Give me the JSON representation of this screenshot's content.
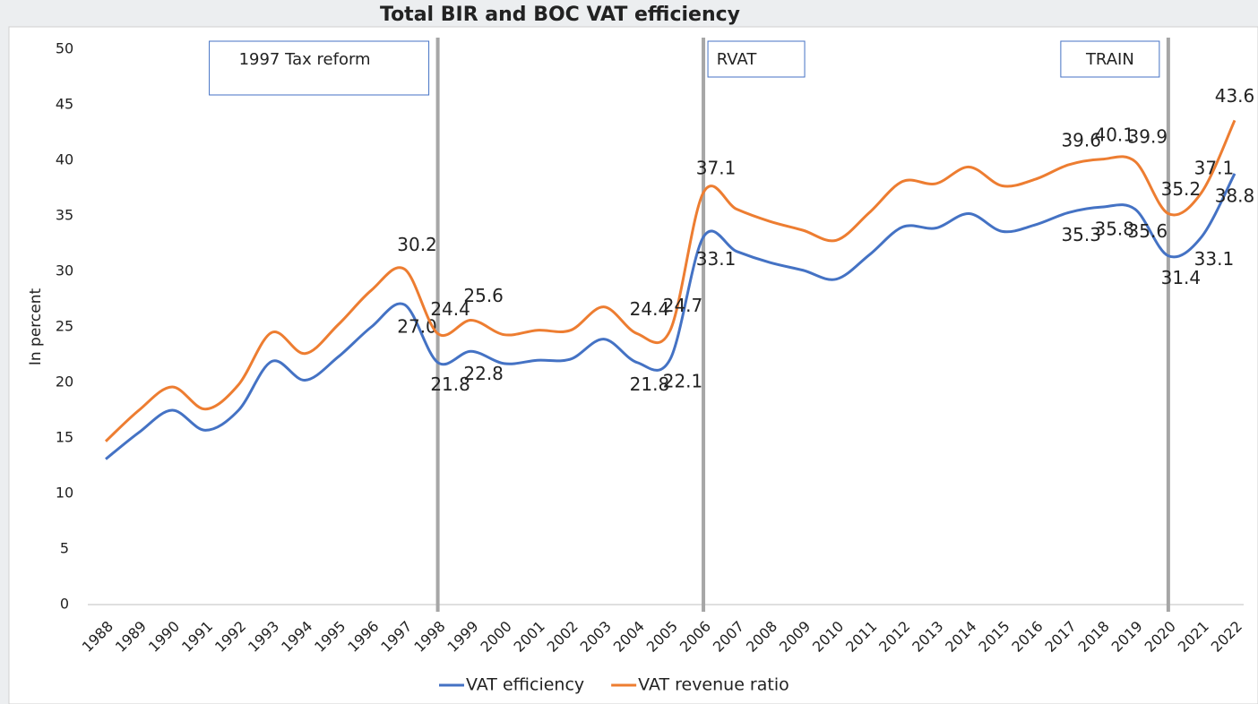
{
  "chart_data": {
    "type": "line",
    "title": "Total BIR and BOC VAT efficiency",
    "y_label": "In percent",
    "categories": [
      "1988",
      "1989",
      "1990",
      "1991",
      "1992",
      "1993",
      "1994",
      "1995",
      "1996",
      "1997",
      "1998",
      "1999",
      "2000",
      "2001",
      "2002",
      "2003",
      "2004",
      "2005",
      "2006",
      "2007",
      "2008",
      "2009",
      "2010",
      "2011",
      "2012",
      "2013",
      "2014",
      "2015",
      "2016",
      "2017",
      "2018",
      "2019",
      "2020",
      "2021",
      "2022"
    ],
    "series": [
      {
        "name": "VAT efficiency",
        "color": "#4472c4",
        "values": [
          13.1,
          15.5,
          17.5,
          15.7,
          17.5,
          21.9,
          20.2,
          22.3,
          25.0,
          27.0,
          21.8,
          22.8,
          21.7,
          22.0,
          22.1,
          23.9,
          21.8,
          22.1,
          33.1,
          31.8,
          30.8,
          30.1,
          29.3,
          31.5,
          34.0,
          33.9,
          35.2,
          33.6,
          34.2,
          35.3,
          35.8,
          35.6,
          31.4,
          33.1,
          38.8
        ],
        "value_labels": [
          null,
          null,
          null,
          null,
          null,
          null,
          null,
          null,
          null,
          "27.0",
          "21.8",
          "22.8",
          null,
          null,
          null,
          null,
          "21.8",
          "22.1",
          "33.1",
          null,
          null,
          null,
          null,
          null,
          null,
          null,
          null,
          null,
          null,
          "35.3",
          "35.8",
          "35.6",
          "31.4",
          "33.1",
          "38.8"
        ]
      },
      {
        "name": "VAT revenue ratio",
        "color": "#ed7d31",
        "values": [
          14.7,
          17.5,
          19.6,
          17.6,
          19.8,
          24.5,
          22.6,
          25.2,
          28.3,
          30.2,
          24.4,
          25.6,
          24.3,
          24.7,
          24.7,
          26.8,
          24.4,
          24.7,
          37.1,
          35.6,
          34.5,
          33.7,
          32.8,
          35.3,
          38.1,
          37.9,
          39.4,
          37.7,
          38.3,
          39.6,
          40.1,
          39.9,
          35.2,
          37.1,
          43.6
        ],
        "value_labels": [
          null,
          null,
          null,
          null,
          null,
          null,
          null,
          null,
          null,
          "30.2",
          "24.4",
          "25.6",
          null,
          null,
          null,
          null,
          "24.4",
          "24.7",
          "37.1",
          null,
          null,
          null,
          null,
          null,
          null,
          null,
          null,
          null,
          null,
          "39.6",
          "40.1",
          "39.9",
          "35.2",
          "37.1",
          "43.6"
        ]
      }
    ],
    "ylim": [
      0,
      50
    ],
    "yticks": [
      0,
      5,
      10,
      15,
      20,
      25,
      30,
      35,
      40,
      45,
      50
    ],
    "legend": "bottom",
    "annotations": [
      {
        "text": "1997 Tax reform",
        "line_at": "1998",
        "side": "left"
      },
      {
        "text": "RVAT",
        "line_at": "2006",
        "side": "right"
      },
      {
        "text": "TRAIN",
        "line_at": "2020",
        "side": "left"
      }
    ]
  }
}
